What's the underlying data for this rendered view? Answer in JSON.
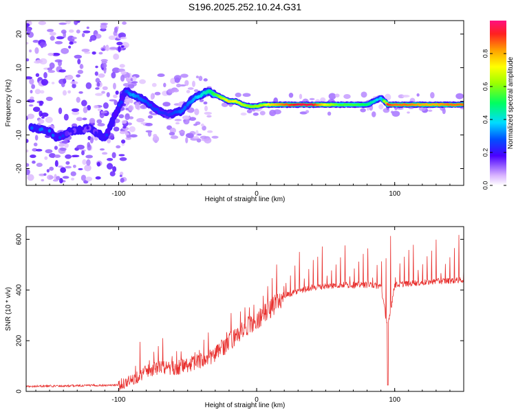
{
  "title": "S196.2025.252.10.24.G31",
  "chart_data": [
    {
      "type": "heatmap",
      "xlabel": "Height of straight line (km)",
      "ylabel": "Frequency (Hz)",
      "xlim": [
        -167,
        150
      ],
      "ylim": [
        -25,
        24
      ],
      "xticks": [
        -100,
        0,
        100
      ],
      "yticks": [
        -20,
        -10,
        0,
        10,
        20
      ],
      "colorbar": {
        "label": "Normalized spectral amplitude",
        "range": [
          0,
          1
        ],
        "ticks": [
          "0.0",
          "0.2",
          "0.4",
          "0.6",
          "0.8"
        ],
        "tick_values": [
          0.0,
          0.2,
          0.4,
          0.6,
          0.8
        ]
      },
      "ridge": [
        {
          "x": -160,
          "f": -8,
          "a": 0.3
        },
        {
          "x": -150,
          "f": -9,
          "a": 0.32
        },
        {
          "x": -145,
          "f": -11,
          "a": 0.28
        },
        {
          "x": -135,
          "f": -9,
          "a": 0.2
        },
        {
          "x": -120,
          "f": -8,
          "a": 0.18
        },
        {
          "x": -110,
          "f": -11,
          "a": 0.25
        },
        {
          "x": -95,
          "f": 3,
          "a": 0.25
        },
        {
          "x": -90,
          "f": 2,
          "a": 0.35
        },
        {
          "x": -85,
          "f": 1,
          "a": 0.3
        },
        {
          "x": -80,
          "f": 0,
          "a": 0.28
        },
        {
          "x": -75,
          "f": -2,
          "a": 0.25
        },
        {
          "x": -70,
          "f": -3,
          "a": 0.25
        },
        {
          "x": -65,
          "f": -4,
          "a": 0.22
        },
        {
          "x": -55,
          "f": -3,
          "a": 0.3
        },
        {
          "x": -50,
          "f": -1,
          "a": 0.3
        },
        {
          "x": -45,
          "f": 1,
          "a": 0.35
        },
        {
          "x": -40,
          "f": 2,
          "a": 0.4
        },
        {
          "x": -35,
          "f": 3,
          "a": 0.45
        },
        {
          "x": -30,
          "f": 2,
          "a": 0.55
        },
        {
          "x": -25,
          "f": 1,
          "a": 0.65
        },
        {
          "x": -20,
          "f": 0,
          "a": 0.75
        },
        {
          "x": -15,
          "f": 0,
          "a": 0.7
        },
        {
          "x": -10,
          "f": -1,
          "a": 0.65
        },
        {
          "x": -5,
          "f": -1.5,
          "a": 0.6
        },
        {
          "x": 0,
          "f": -1.5,
          "a": 0.62
        },
        {
          "x": 5,
          "f": -1,
          "a": 0.65
        },
        {
          "x": 10,
          "f": -1,
          "a": 0.75
        },
        {
          "x": 20,
          "f": -1,
          "a": 0.85
        },
        {
          "x": 30,
          "f": -1,
          "a": 0.95
        },
        {
          "x": 40,
          "f": -1,
          "a": 0.95
        },
        {
          "x": 50,
          "f": -1,
          "a": 0.7
        },
        {
          "x": 60,
          "f": -1,
          "a": 0.55
        },
        {
          "x": 70,
          "f": -1,
          "a": 0.55
        },
        {
          "x": 80,
          "f": -1,
          "a": 0.5
        },
        {
          "x": 90,
          "f": 1,
          "a": 0.35
        },
        {
          "x": 95,
          "f": -1,
          "a": 0.9
        },
        {
          "x": 100,
          "f": -1,
          "a": 0.85
        },
        {
          "x": 110,
          "f": -1,
          "a": 0.85
        },
        {
          "x": 120,
          "f": -1,
          "a": 0.8
        },
        {
          "x": 130,
          "f": -1,
          "a": 0.8
        },
        {
          "x": 140,
          "f": -1,
          "a": 0.85
        },
        {
          "x": 148,
          "f": -1,
          "a": 0.85
        }
      ]
    },
    {
      "type": "line",
      "xlabel": "Height of straight line (km)",
      "ylabel": "SNR (10 * v/v)",
      "xlim": [
        -167,
        150
      ],
      "ylim": [
        0,
        650
      ],
      "xticks": [
        -100,
        0,
        100
      ],
      "yticks": [
        0,
        200,
        400,
        600
      ],
      "color": "#e8302e",
      "baseline": {
        "x": [
          -167,
          -100,
          -90,
          -80,
          -70,
          -60,
          -50,
          -40,
          -30,
          -20,
          -10,
          0,
          10,
          20,
          30,
          40,
          60,
          80,
          90,
          95,
          100,
          120,
          150
        ],
        "y": [
          20,
          25,
          45,
          80,
          95,
          90,
          105,
          120,
          145,
          195,
          240,
          280,
          330,
          375,
          395,
          410,
          420,
          420,
          415,
          250,
          420,
          430,
          440
        ]
      },
      "spikes": [
        {
          "x": -80,
          "y": 200
        },
        {
          "x": -72,
          "y": 215
        },
        {
          "x": -60,
          "y": 180
        },
        {
          "x": -40,
          "y": 245
        },
        {
          "x": -30,
          "y": 225
        },
        {
          "x": -10,
          "y": 385
        },
        {
          "x": 4,
          "y": 505
        },
        {
          "x": 10,
          "y": 365
        },
        {
          "x": 22,
          "y": 520
        },
        {
          "x": 40,
          "y": 555
        },
        {
          "x": 50,
          "y": 550
        },
        {
          "x": 60,
          "y": 555
        },
        {
          "x": 70,
          "y": 560
        },
        {
          "x": 80,
          "y": 565
        },
        {
          "x": 90,
          "y": 620
        },
        {
          "x": 96,
          "y": 650
        },
        {
          "x": 100,
          "y": 580
        },
        {
          "x": 110,
          "y": 585
        },
        {
          "x": 120,
          "y": 595
        },
        {
          "x": 130,
          "y": 590
        },
        {
          "x": 140,
          "y": 595
        },
        {
          "x": 148,
          "y": 600
        }
      ],
      "dip": {
        "x": 95,
        "y": 25
      }
    }
  ]
}
